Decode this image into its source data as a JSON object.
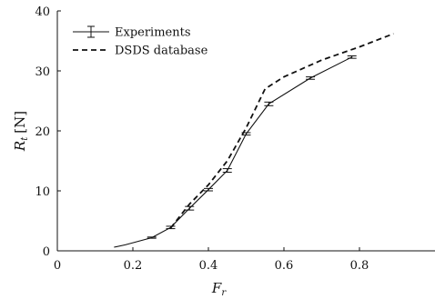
{
  "chart_data": {
    "type": "line",
    "xlabel_main": "F",
    "xlabel_sub": "r",
    "ylabel_main": "R",
    "ylabel_sub": "t",
    "ylabel_unit": "[N]",
    "xlim": [
      0,
      1.0
    ],
    "ylim": [
      0,
      40
    ],
    "xticks": [
      0,
      0.2,
      0.4,
      0.6,
      0.8
    ],
    "xtick_labels": [
      "0",
      "0.2",
      "0.4",
      "0.6",
      "0.8"
    ],
    "yticks": [
      0,
      10,
      20,
      30,
      40
    ],
    "ytick_labels": [
      "0",
      "10",
      "20",
      "30",
      "40"
    ],
    "grid": false,
    "legend_position": "top-left",
    "series": [
      {
        "name": "Experiments",
        "style": "solid-errorbar",
        "color": "#111111",
        "x": [
          0.15,
          0.18,
          0.25,
          0.3,
          0.35,
          0.4,
          0.45,
          0.5,
          0.56,
          0.67,
          0.78
        ],
        "y": [
          0.6,
          1.0,
          2.2,
          3.9,
          7.1,
          10.2,
          13.4,
          19.5,
          24.5,
          28.8,
          32.3
        ],
        "err": [
          0,
          0,
          0.1,
          0.2,
          0.3,
          0.2,
          0.3,
          0.2,
          0.3,
          0.2,
          0.2
        ]
      },
      {
        "name": "DSDS database",
        "style": "dashed",
        "color": "#111111",
        "x": [
          0.3,
          0.35,
          0.4,
          0.45,
          0.5,
          0.55,
          0.6,
          0.7,
          0.8,
          0.89
        ],
        "y": [
          3.8,
          7.8,
          11.0,
          15.0,
          20.5,
          27.0,
          29.0,
          31.8,
          34.0,
          36.2
        ],
        "err": []
      }
    ]
  }
}
